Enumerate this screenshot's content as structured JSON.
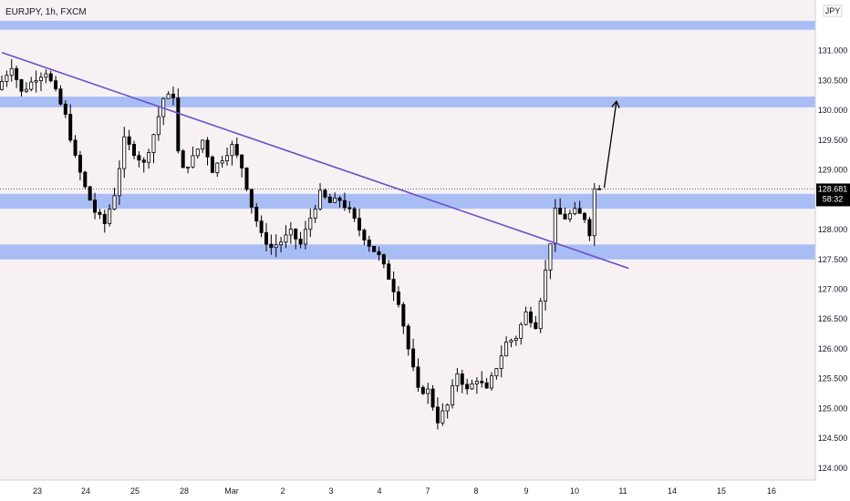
{
  "header": {
    "symbol_label": "EURJPY, 1h, FXCM"
  },
  "axis": {
    "currency_label": "JPY"
  },
  "price_marker": {
    "price": "128.681",
    "countdown": "58:32"
  },
  "colors": {
    "background": "#f8f1f3",
    "zone": "#a9bdf5",
    "trendline": "#6a4fc9",
    "candle": "#000000",
    "axis_bg": "#ffffff",
    "marker_bg": "#000000",
    "marker_text": "#ffffff"
  },
  "chart_data": {
    "type": "candlestick",
    "symbol": "EURJPY",
    "timeframe": "1h",
    "source": "FXCM",
    "ylim": [
      123.8,
      131.85
    ],
    "y_ticks": [
      "124.000",
      "124.500",
      "125.000",
      "125.500",
      "126.000",
      "126.500",
      "127.000",
      "127.500",
      "128.000",
      "128.500",
      "129.000",
      "129.500",
      "130.000",
      "130.500",
      "131.000"
    ],
    "y_tick_values": [
      124.0,
      124.5,
      125.0,
      125.5,
      126.0,
      126.5,
      127.0,
      127.5,
      128.0,
      128.5,
      129.0,
      129.5,
      130.0,
      130.5,
      131.0
    ],
    "x_ticks": [
      "23",
      "24",
      "25",
      "28",
      "Mar",
      "2",
      "3",
      "4",
      "7",
      "8",
      "9",
      "10",
      "11",
      "14",
      "15",
      "16"
    ],
    "price_path": [
      [
        0,
        130.35
      ],
      [
        3,
        130.75
      ],
      [
        5,
        130.3
      ],
      [
        8,
        130.55
      ],
      [
        10,
        130.65
      ],
      [
        12,
        130.3
      ],
      [
        14,
        129.9
      ],
      [
        16,
        129.2
      ],
      [
        18,
        128.7
      ],
      [
        20,
        128.3
      ],
      [
        22,
        128.1
      ],
      [
        24,
        128.6
      ],
      [
        26,
        129.5
      ],
      [
        28,
        129.3
      ],
      [
        30,
        129.1
      ],
      [
        32,
        129.6
      ],
      [
        34,
        130.2
      ],
      [
        36,
        130.25
      ],
      [
        37,
        129.3
      ],
      [
        38,
        129.0
      ],
      [
        40,
        129.2
      ],
      [
        42,
        129.5
      ],
      [
        44,
        129.0
      ],
      [
        46,
        129.2
      ],
      [
        48,
        129.4
      ],
      [
        50,
        129.05
      ],
      [
        52,
        128.4
      ],
      [
        54,
        127.9
      ],
      [
        56,
        127.7
      ],
      [
        58,
        127.8
      ],
      [
        60,
        127.95
      ],
      [
        62,
        127.75
      ],
      [
        64,
        128.2
      ],
      [
        66,
        128.6
      ],
      [
        68,
        128.45
      ],
      [
        70,
        128.5
      ],
      [
        72,
        128.3
      ],
      [
        74,
        128.0
      ],
      [
        76,
        127.75
      ],
      [
        78,
        127.55
      ],
      [
        80,
        127.2
      ],
      [
        82,
        126.8
      ],
      [
        84,
        126.0
      ],
      [
        86,
        125.3
      ],
      [
        88,
        125.3
      ],
      [
        90,
        124.8
      ],
      [
        92,
        125.05
      ],
      [
        94,
        125.6
      ],
      [
        96,
        125.3
      ],
      [
        98,
        125.5
      ],
      [
        100,
        125.3
      ],
      [
        102,
        125.7
      ],
      [
        104,
        126.1
      ],
      [
        106,
        126.2
      ],
      [
        108,
        126.6
      ],
      [
        110,
        126.4
      ],
      [
        112,
        127.3
      ],
      [
        114,
        128.3
      ],
      [
        116,
        128.2
      ],
      [
        118,
        128.3
      ],
      [
        120,
        128.2
      ],
      [
        121,
        127.95
      ],
      [
        122,
        128.68
      ]
    ],
    "candle_count": 123,
    "horizontal_zones": [
      {
        "low": 131.35,
        "high": 131.5
      },
      {
        "low": 130.05,
        "high": 130.23
      },
      {
        "low": 128.35,
        "high": 128.6
      },
      {
        "low": 127.5,
        "high": 127.75
      }
    ],
    "trendline": {
      "from": [
        0,
        130.97
      ],
      "to": [
        128,
        127.35
      ]
    },
    "projection_arrow": {
      "from": [
        123,
        128.7
      ],
      "to": [
        125.5,
        130.15
      ]
    },
    "last_price": 128.681,
    "countdown": "58:32",
    "grid": false
  }
}
